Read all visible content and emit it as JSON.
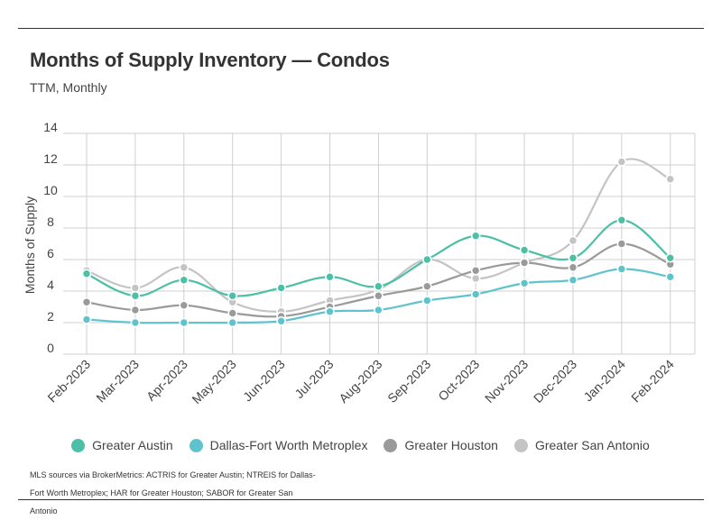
{
  "title": "Months of Supply Inventory — Condos",
  "subtitle": "TTM, Monthly",
  "source": "MLS sources via BrokerMetrics: ACTRIS for Greater Austin; NTREIS for Dallas-Fort Worth Metroplex; HAR for Greater Houston; SABOR for Greater San Antonio",
  "chart_data": {
    "type": "line",
    "ylabel": "Months of Supply",
    "ylim": [
      0,
      14
    ],
    "yticks": [
      0,
      2,
      4,
      6,
      8,
      10,
      12,
      14
    ],
    "grid": true,
    "legend_position": "bottom",
    "categories": [
      "Feb-2023",
      "Mar-2023",
      "Apr-2023",
      "May-2023",
      "Jun-2023",
      "Jul-2023",
      "Aug-2023",
      "Sep-2023",
      "Oct-2023",
      "Nov-2023",
      "Dec-2023",
      "Jan-2024",
      "Feb-2024"
    ],
    "series": [
      {
        "name": "Greater Austin",
        "color": "#4dbfa7",
        "values": [
          5.1,
          3.7,
          4.7,
          3.7,
          4.2,
          4.9,
          4.3,
          6.0,
          7.5,
          6.6,
          6.1,
          8.5,
          6.1
        ]
      },
      {
        "name": "Dallas-Fort Worth Metroplex",
        "color": "#5fc3cd",
        "values": [
          2.2,
          2.0,
          2.0,
          2.0,
          2.1,
          2.7,
          2.8,
          3.4,
          3.8,
          4.5,
          4.7,
          5.4,
          4.9
        ]
      },
      {
        "name": "Greater Houston",
        "color": "#9a9a9a",
        "values": [
          3.3,
          2.8,
          3.1,
          2.6,
          2.4,
          3.0,
          3.7,
          4.3,
          5.3,
          5.8,
          5.5,
          7.0,
          5.7
        ]
      },
      {
        "name": "Greater San Antonio",
        "color": "#c4c4c4",
        "values": [
          5.3,
          4.2,
          5.5,
          3.3,
          2.7,
          3.4,
          4.1,
          6.0,
          4.8,
          5.8,
          7.2,
          12.2,
          11.1
        ]
      }
    ]
  }
}
